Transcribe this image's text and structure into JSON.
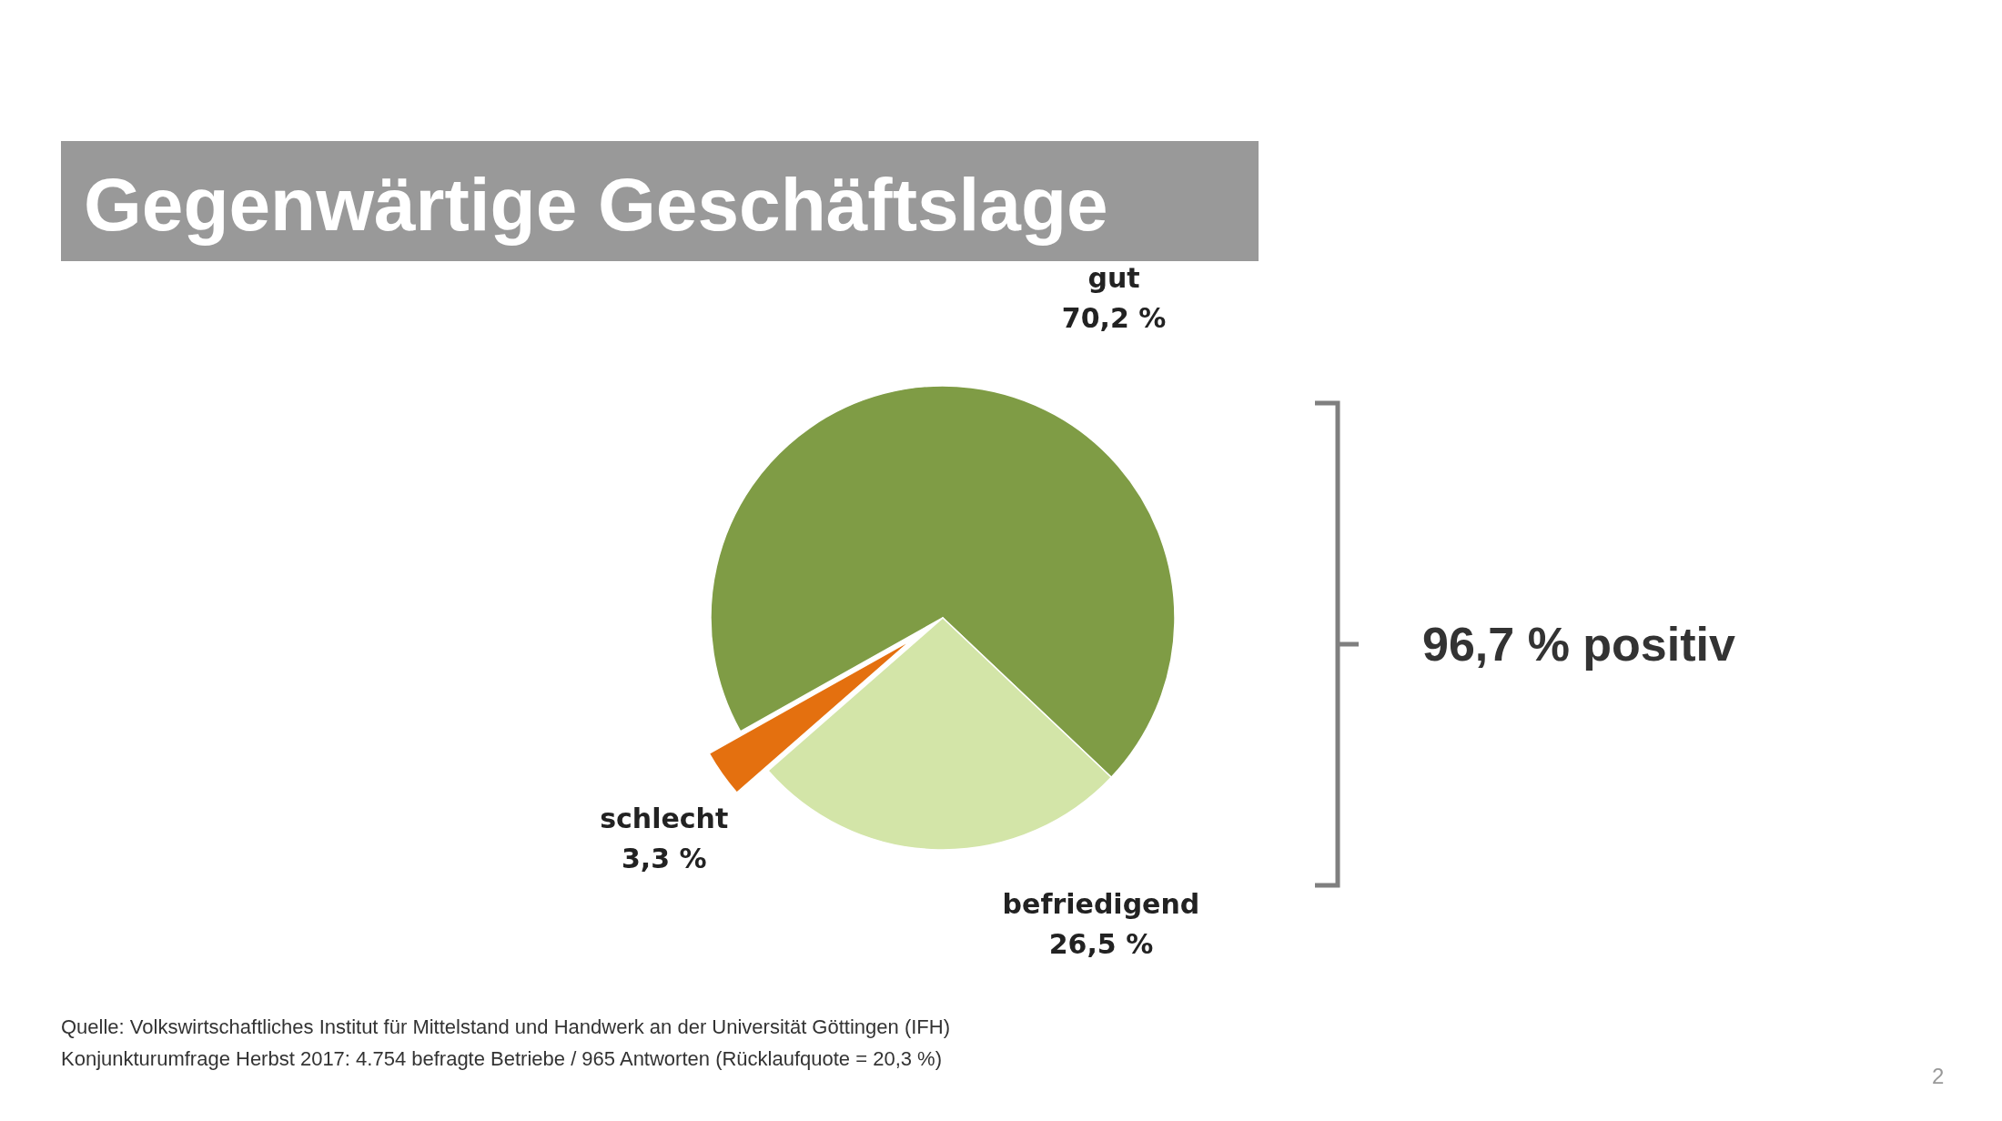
{
  "chart_data": {
    "type": "pie",
    "title": "Gegenwärtige Geschäftslage",
    "categories": [
      "gut",
      "befriedigend",
      "schlecht"
    ],
    "values": [
      70.2,
      26.5,
      3.3
    ],
    "colors": [
      "#7f9c45",
      "#d3e5a8",
      "#e4700f"
    ],
    "value_labels": [
      "70,2 %",
      "26,5 %",
      "3,3 %"
    ],
    "annotations": [
      "96,7 % positiv",
      "Quelle: Volkswirtschaftliches Institut für Mittelstand und Handwerk an der Universität Göttingen (IFH)",
      "Konjunkturumfrage Herbst 2017: 4.754 befragte Betriebe / 965 Antworten (Rücklaufquote = 20,3 %)",
      "2"
    ]
  }
}
